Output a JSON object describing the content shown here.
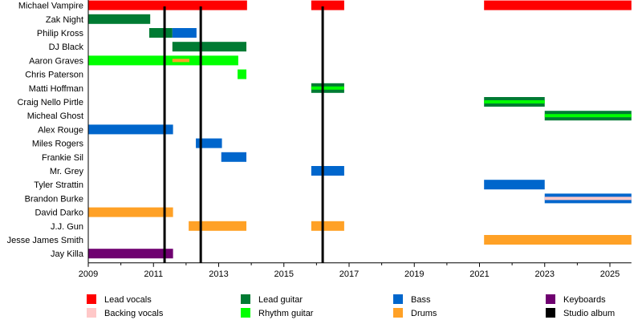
{
  "chart_data": {
    "type": "timeline",
    "xlim": [
      2009,
      2025.66
    ],
    "ticks": [
      2009,
      2011,
      2013,
      2015,
      2017,
      2019,
      2021,
      2023,
      2025
    ],
    "roles": {
      "lead_vocals": {
        "label": "Lead vocals",
        "color": "#ff0000"
      },
      "backing_vocals": {
        "label": "Backing vocals",
        "color": "#ffc8c8"
      },
      "lead_guitar": {
        "label": "Lead guitar",
        "color": "#007b33"
      },
      "rhythm_guitar": {
        "label": "Rhythm guitar",
        "color": "#00ff00"
      },
      "bass": {
        "label": "Bass",
        "color": "#0066cc"
      },
      "drums": {
        "label": "Drums",
        "color": "#ffa126"
      },
      "keyboards": {
        "label": "Keyboards",
        "color": "#6f0070"
      },
      "studio_album": {
        "label": "Studio album",
        "color": "#000000"
      }
    },
    "legend_order": [
      "lead_vocals",
      "backing_vocals",
      "lead_guitar",
      "rhythm_guitar",
      "bass",
      "drums",
      "keyboards",
      "studio_album"
    ],
    "studio_albums": [
      2011.34,
      2012.45,
      2016.19
    ],
    "members": [
      {
        "name": "Michael Vampire",
        "spans": [
          {
            "role": "lead_vocals",
            "from": 2009,
            "to": 2013.87
          },
          {
            "role": "lead_vocals",
            "from": 2015.84,
            "to": 2016.85
          },
          {
            "role": "lead_vocals",
            "from": 2021.14,
            "to": 2025.66
          }
        ]
      },
      {
        "name": "Zak Night",
        "spans": [
          {
            "role": "lead_guitar",
            "from": 2009,
            "to": 2010.9
          }
        ]
      },
      {
        "name": "Philip Kross",
        "spans": [
          {
            "role": "lead_guitar",
            "from": 2010.87,
            "to": 2011.58
          },
          {
            "role": "bass",
            "from": 2011.58,
            "to": 2012.32
          }
        ]
      },
      {
        "name": "DJ Black",
        "spans": [
          {
            "role": "lead_guitar",
            "from": 2011.58,
            "to": 2013.85
          }
        ]
      },
      {
        "name": "Aaron Graves",
        "spans": [
          {
            "role": "rhythm_guitar",
            "from": 2009,
            "to": 2013.6
          },
          {
            "role": "drums",
            "from": 2011.58,
            "to": 2012.1,
            "thin": true
          }
        ]
      },
      {
        "name": "Chris Paterson",
        "spans": [
          {
            "role": "rhythm_guitar",
            "from": 2013.58,
            "to": 2013.85
          }
        ]
      },
      {
        "name": "Matti Hoffman",
        "spans": [
          {
            "role": "lead_guitar",
            "from": 2015.84,
            "to": 2016.85,
            "stripe": "rhythm_guitar"
          }
        ]
      },
      {
        "name": "Craig Nello Pirtle",
        "spans": [
          {
            "role": "lead_guitar",
            "from": 2021.14,
            "to": 2023.0,
            "stripe": "rhythm_guitar"
          }
        ]
      },
      {
        "name": "Micheal Ghost",
        "spans": [
          {
            "role": "lead_guitar",
            "from": 2023.0,
            "to": 2025.66,
            "stripe": "rhythm_guitar"
          }
        ]
      },
      {
        "name": "Alex Rouge",
        "spans": [
          {
            "role": "bass",
            "from": 2009,
            "to": 2011.6
          }
        ]
      },
      {
        "name": "Miles Rogers",
        "spans": [
          {
            "role": "bass",
            "from": 2012.3,
            "to": 2013.1
          }
        ]
      },
      {
        "name": "Frankie Sil",
        "spans": [
          {
            "role": "bass",
            "from": 2013.08,
            "to": 2013.85
          }
        ]
      },
      {
        "name": "Mr. Grey",
        "spans": [
          {
            "role": "bass",
            "from": 2015.84,
            "to": 2016.85
          }
        ]
      },
      {
        "name": "Tyler Strattin",
        "spans": [
          {
            "role": "bass",
            "from": 2021.14,
            "to": 2023.0
          }
        ]
      },
      {
        "name": "Brandon Burke",
        "spans": [
          {
            "role": "bass",
            "from": 2023.0,
            "to": 2025.66,
            "stripe": "backing_vocals"
          }
        ]
      },
      {
        "name": "David Darko",
        "spans": [
          {
            "role": "drums",
            "from": 2009,
            "to": 2011.6
          }
        ]
      },
      {
        "name": "J.J. Gun",
        "spans": [
          {
            "role": "drums",
            "from": 2012.08,
            "to": 2013.85
          },
          {
            "role": "drums",
            "from": 2015.84,
            "to": 2016.85
          }
        ]
      },
      {
        "name": "Jesse James Smith",
        "spans": [
          {
            "role": "drums",
            "from": 2021.14,
            "to": 2025.66
          }
        ]
      },
      {
        "name": "Jay Killa",
        "spans": [
          {
            "role": "keyboards",
            "from": 2009,
            "to": 2011.6
          }
        ]
      }
    ]
  }
}
